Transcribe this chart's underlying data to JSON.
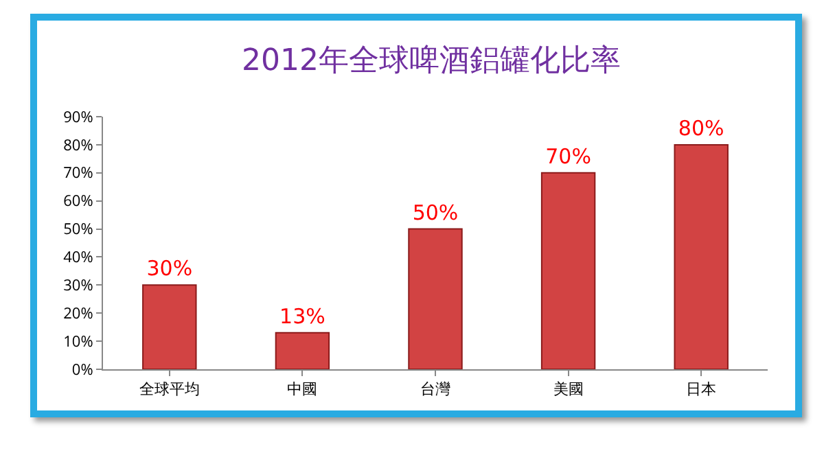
{
  "chart_data": {
    "type": "bar",
    "title": "2012年全球啤酒鋁罐化比率",
    "categories": [
      "全球平均",
      "中國",
      "台灣",
      "美國",
      "日本"
    ],
    "values": [
      30,
      13,
      50,
      70,
      80
    ],
    "value_labels": [
      "30%",
      "13%",
      "50%",
      "70%",
      "80%"
    ],
    "color": "#d24343",
    "ylim": [
      0,
      90
    ],
    "yticks": [
      {
        "value": 0,
        "label": "0%"
      },
      {
        "value": 10,
        "label": "10%"
      },
      {
        "value": 20,
        "label": "20%"
      },
      {
        "value": 30,
        "label": "30%"
      },
      {
        "value": 40,
        "label": "40%"
      },
      {
        "value": 50,
        "label": "50%"
      },
      {
        "value": 60,
        "label": "60%"
      },
      {
        "value": 70,
        "label": "70%"
      },
      {
        "value": 80,
        "label": "80%"
      },
      {
        "value": 90,
        "label": "90%"
      }
    ],
    "grid": false,
    "legend": false
  }
}
